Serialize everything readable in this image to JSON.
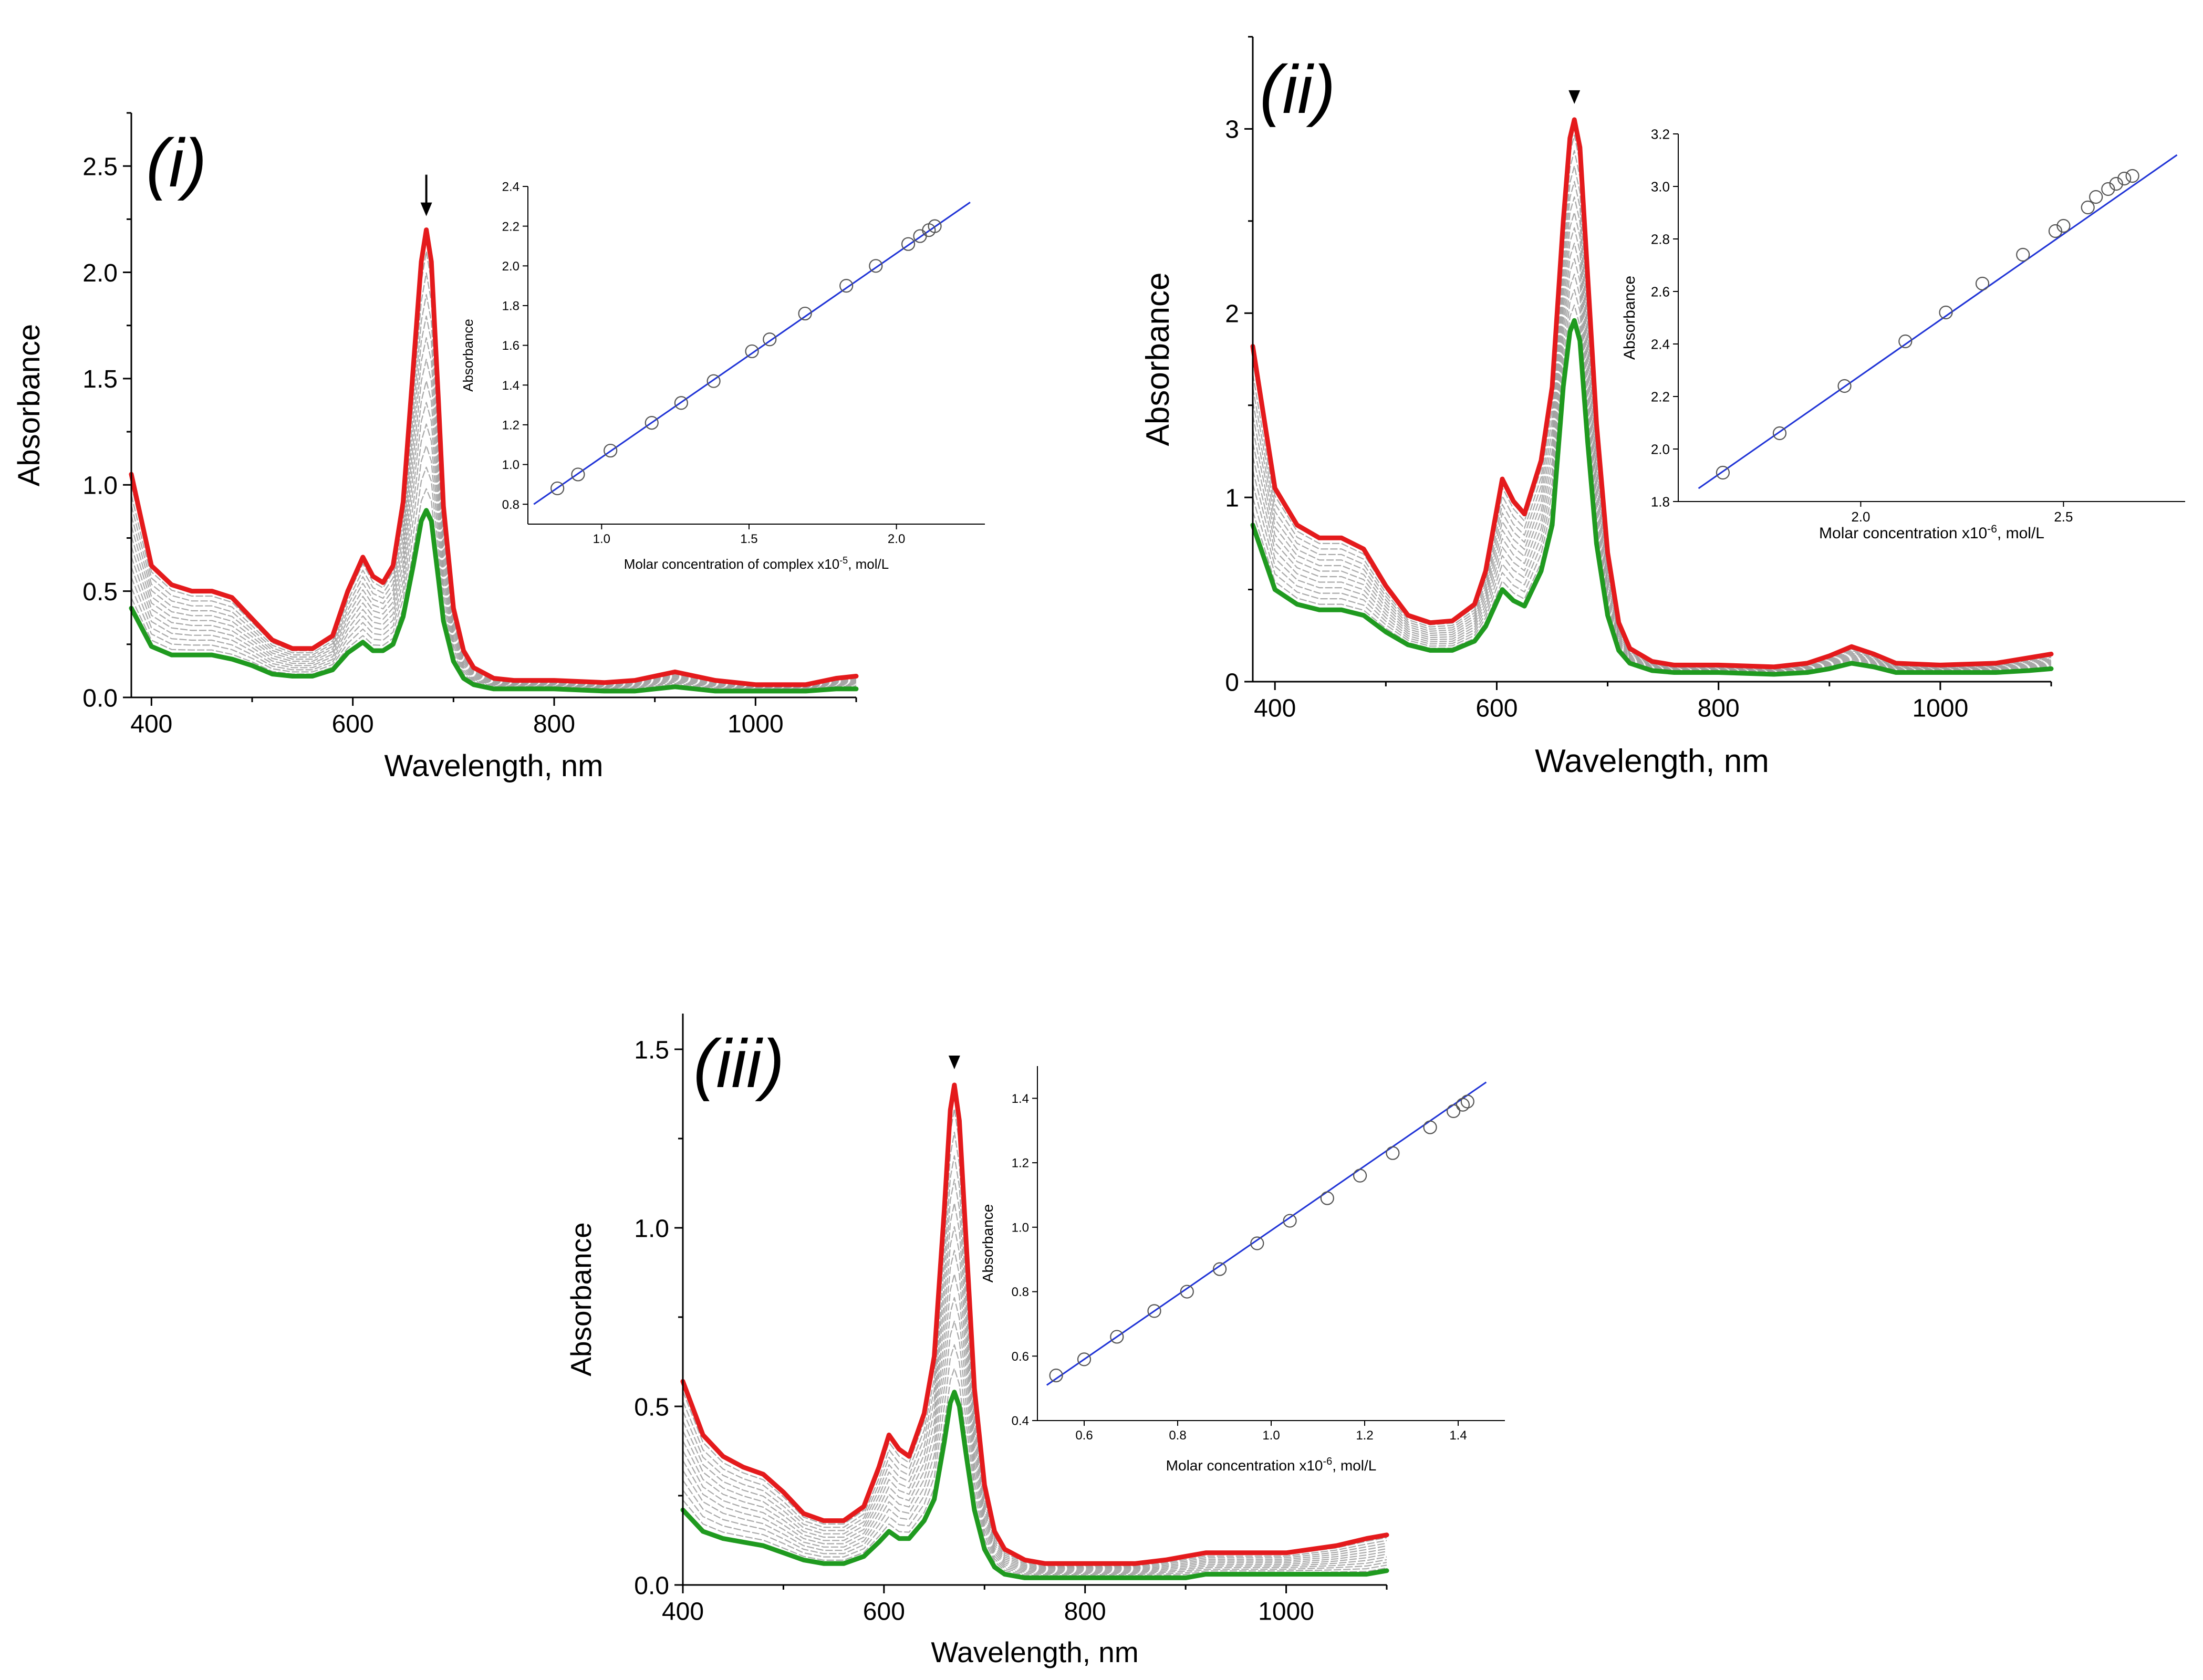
{
  "colors": {
    "final_spectrum": "#e41a1c",
    "initial_spectrum": "#1f9a1f",
    "intermediate_spectra": "#9a9a9a",
    "fit_line": "#1f33d6",
    "marker": "#555555",
    "axis": "#000000"
  },
  "chart_data": [
    {
      "type": "line",
      "panel_label": "(i)",
      "xlabel": "Wavelength, nm",
      "ylabel": "Absorbance",
      "xlim": [
        380,
        1100
      ],
      "ylim": [
        0.0,
        2.75
      ],
      "xticks": [
        400,
        600,
        800,
        1000
      ],
      "yticks": [
        0.0,
        0.5,
        1.0,
        1.5,
        2.0,
        2.5
      ],
      "ytick_labels": [
        "0.0",
        "0.5",
        "1.0",
        "1.5",
        "2.0",
        "2.5"
      ],
      "grid": false,
      "peak_arrow": {
        "x": 673,
        "style": "arrow"
      },
      "spectra_count": 14,
      "series": [
        {
          "role": "final",
          "x": [
            380,
            400,
            420,
            440,
            460,
            480,
            500,
            520,
            540,
            560,
            580,
            595,
            610,
            620,
            630,
            640,
            650,
            660,
            668,
            673,
            678,
            685,
            690,
            700,
            710,
            720,
            740,
            760,
            800,
            850,
            880,
            900,
            920,
            940,
            960,
            1000,
            1050,
            1080,
            1100
          ],
          "y": [
            1.05,
            0.62,
            0.53,
            0.5,
            0.5,
            0.47,
            0.37,
            0.27,
            0.23,
            0.23,
            0.29,
            0.5,
            0.66,
            0.57,
            0.54,
            0.62,
            0.92,
            1.55,
            2.05,
            2.2,
            2.05,
            1.4,
            0.9,
            0.42,
            0.22,
            0.14,
            0.09,
            0.08,
            0.08,
            0.07,
            0.08,
            0.1,
            0.12,
            0.1,
            0.08,
            0.06,
            0.06,
            0.09,
            0.1
          ]
        },
        {
          "role": "initial",
          "x": [
            380,
            400,
            420,
            440,
            460,
            480,
            500,
            520,
            540,
            560,
            580,
            595,
            610,
            620,
            630,
            640,
            650,
            660,
            668,
            673,
            678,
            685,
            690,
            700,
            710,
            720,
            740,
            760,
            800,
            850,
            880,
            900,
            920,
            940,
            960,
            1000,
            1050,
            1080,
            1100
          ],
          "y": [
            0.42,
            0.24,
            0.2,
            0.2,
            0.2,
            0.18,
            0.15,
            0.11,
            0.1,
            0.1,
            0.13,
            0.21,
            0.26,
            0.22,
            0.22,
            0.25,
            0.38,
            0.62,
            0.83,
            0.88,
            0.83,
            0.56,
            0.36,
            0.17,
            0.09,
            0.06,
            0.04,
            0.04,
            0.04,
            0.03,
            0.03,
            0.04,
            0.05,
            0.04,
            0.03,
            0.03,
            0.03,
            0.04,
            0.04
          ]
        }
      ],
      "inset": {
        "type": "scatter",
        "xlabel": "Molar concentration of complex x10",
        "xlabel_exponent": "-5",
        "xlabel_unit": ", mol/L",
        "ylabel": "Absorbance",
        "xlim": [
          0.75,
          2.3
        ],
        "ylim": [
          0.7,
          2.4
        ],
        "xticks": [
          1.0,
          1.5,
          2.0
        ],
        "xtick_labels": [
          "1.0",
          "1.5",
          "2.0"
        ],
        "yticks": [
          0.8,
          1.0,
          1.2,
          1.4,
          1.6,
          1.8,
          2.0,
          2.2,
          2.4
        ],
        "ytick_labels": [
          "0.8",
          "1.0",
          "1.2",
          "1.4",
          "1.6",
          "1.8",
          "2.0",
          "2.2",
          "2.4"
        ],
        "points": {
          "x": [
            0.85,
            0.92,
            1.03,
            1.17,
            1.27,
            1.38,
            1.51,
            1.57,
            1.69,
            1.83,
            1.93,
            2.04,
            2.08,
            2.11,
            2.13
          ],
          "y": [
            0.88,
            0.95,
            1.07,
            1.21,
            1.31,
            1.42,
            1.57,
            1.63,
            1.76,
            1.9,
            2.0,
            2.11,
            2.15,
            2.18,
            2.2
          ]
        },
        "fit": {
          "x": [
            0.77,
            2.25
          ],
          "y": [
            0.8,
            2.32
          ]
        }
      }
    },
    {
      "type": "line",
      "panel_label": "(ii)",
      "xlabel": "Wavelength, nm",
      "ylabel": "Absorbance",
      "xlim": [
        380,
        1100
      ],
      "ylim": [
        0.0,
        3.5
      ],
      "xticks": [
        400,
        600,
        800,
        1000
      ],
      "yticks": [
        0,
        1,
        2,
        3
      ],
      "ytick_labels": [
        "0",
        "1",
        "2",
        "3"
      ],
      "grid": false,
      "peak_arrow": {
        "x": 670,
        "style": "triangle"
      },
      "spectra_count": 14,
      "series": [
        {
          "role": "final",
          "x": [
            380,
            400,
            420,
            440,
            460,
            480,
            500,
            520,
            540,
            560,
            580,
            590,
            605,
            615,
            625,
            640,
            650,
            660,
            666,
            670,
            675,
            682,
            690,
            700,
            710,
            720,
            740,
            760,
            800,
            850,
            880,
            900,
            920,
            940,
            960,
            1000,
            1050,
            1080,
            1100
          ],
          "y": [
            1.82,
            1.05,
            0.85,
            0.78,
            0.78,
            0.72,
            0.52,
            0.36,
            0.32,
            0.33,
            0.42,
            0.6,
            1.1,
            0.98,
            0.91,
            1.2,
            1.6,
            2.5,
            2.95,
            3.05,
            2.9,
            2.2,
            1.4,
            0.7,
            0.32,
            0.18,
            0.11,
            0.09,
            0.09,
            0.08,
            0.1,
            0.14,
            0.19,
            0.15,
            0.1,
            0.09,
            0.1,
            0.13,
            0.15
          ]
        },
        {
          "role": "initial",
          "x": [
            380,
            400,
            420,
            440,
            460,
            480,
            500,
            520,
            540,
            560,
            580,
            590,
            605,
            615,
            625,
            640,
            650,
            660,
            666,
            670,
            675,
            682,
            690,
            700,
            710,
            720,
            740,
            760,
            800,
            850,
            880,
            900,
            920,
            940,
            960,
            1000,
            1050,
            1080,
            1100
          ],
          "y": [
            0.85,
            0.5,
            0.42,
            0.39,
            0.39,
            0.36,
            0.27,
            0.2,
            0.17,
            0.17,
            0.22,
            0.3,
            0.5,
            0.44,
            0.41,
            0.6,
            0.85,
            1.6,
            1.9,
            1.96,
            1.85,
            1.3,
            0.75,
            0.36,
            0.17,
            0.1,
            0.06,
            0.05,
            0.05,
            0.04,
            0.05,
            0.07,
            0.1,
            0.08,
            0.05,
            0.05,
            0.05,
            0.06,
            0.07
          ]
        }
      ],
      "inset": {
        "type": "scatter",
        "xlabel": "Molar concentration x10",
        "xlabel_exponent": "-6",
        "xlabel_unit": ", mol/L",
        "ylabel": "Absorbance",
        "xlim": [
          1.55,
          2.8
        ],
        "ylim": [
          1.8,
          3.2
        ],
        "xticks": [
          2.0,
          2.5
        ],
        "xtick_labels": [
          "2.0",
          "2.5"
        ],
        "yticks": [
          1.8,
          2.0,
          2.2,
          2.4,
          2.6,
          2.8,
          3.0,
          3.2
        ],
        "ytick_labels": [
          "1.8",
          "2.0",
          "2.2",
          "2.4",
          "2.6",
          "2.8",
          "3.0",
          "3.2"
        ],
        "points": {
          "x": [
            1.66,
            1.8,
            1.96,
            2.11,
            2.21,
            2.3,
            2.4,
            2.48,
            2.5,
            2.56,
            2.58,
            2.61,
            2.63,
            2.65,
            2.67
          ],
          "y": [
            1.91,
            2.06,
            2.24,
            2.41,
            2.52,
            2.63,
            2.74,
            2.83,
            2.85,
            2.92,
            2.96,
            2.99,
            3.01,
            3.03,
            3.04
          ]
        },
        "fit": {
          "x": [
            1.6,
            2.78
          ],
          "y": [
            1.85,
            3.12
          ]
        }
      }
    },
    {
      "type": "line",
      "panel_label": "(iii)",
      "xlabel": "Wavelength, nm",
      "ylabel": "Absorbance",
      "xlim": [
        400,
        1100
      ],
      "ylim": [
        0.0,
        1.6
      ],
      "xticks": [
        400,
        600,
        800,
        1000
      ],
      "yticks": [
        0.0,
        0.5,
        1.0,
        1.5
      ],
      "ytick_labels": [
        "0.0",
        "0.5",
        "1.0",
        "1.5"
      ],
      "grid": false,
      "peak_arrow": {
        "x": 670,
        "style": "triangle"
      },
      "spectra_count": 14,
      "series": [
        {
          "role": "final",
          "x": [
            400,
            420,
            440,
            460,
            480,
            500,
            520,
            540,
            560,
            580,
            595,
            605,
            615,
            625,
            640,
            650,
            660,
            666,
            670,
            675,
            682,
            690,
            700,
            710,
            720,
            740,
            760,
            800,
            850,
            880,
            900,
            920,
            940,
            960,
            1000,
            1050,
            1080,
            1100
          ],
          "y": [
            0.57,
            0.42,
            0.36,
            0.33,
            0.31,
            0.26,
            0.2,
            0.18,
            0.18,
            0.22,
            0.33,
            0.42,
            0.38,
            0.36,
            0.48,
            0.64,
            1.05,
            1.33,
            1.4,
            1.3,
            0.95,
            0.55,
            0.28,
            0.15,
            0.1,
            0.07,
            0.06,
            0.06,
            0.06,
            0.07,
            0.08,
            0.09,
            0.09,
            0.09,
            0.09,
            0.11,
            0.13,
            0.14
          ]
        },
        {
          "role": "initial",
          "x": [
            400,
            420,
            440,
            460,
            480,
            500,
            520,
            540,
            560,
            580,
            595,
            605,
            615,
            625,
            640,
            650,
            660,
            666,
            670,
            675,
            682,
            690,
            700,
            710,
            720,
            740,
            760,
            800,
            850,
            880,
            900,
            920,
            940,
            960,
            1000,
            1050,
            1080,
            1100
          ],
          "y": [
            0.21,
            0.15,
            0.13,
            0.12,
            0.11,
            0.09,
            0.07,
            0.06,
            0.06,
            0.08,
            0.12,
            0.15,
            0.13,
            0.13,
            0.18,
            0.24,
            0.4,
            0.51,
            0.54,
            0.5,
            0.36,
            0.21,
            0.1,
            0.05,
            0.03,
            0.02,
            0.02,
            0.02,
            0.02,
            0.02,
            0.02,
            0.03,
            0.03,
            0.03,
            0.03,
            0.03,
            0.03,
            0.04
          ]
        }
      ],
      "inset": {
        "type": "scatter",
        "xlabel": "Molar concentration x10",
        "xlabel_exponent": "-6",
        "xlabel_unit": ", mol/L",
        "ylabel": "Absorbance",
        "xlim": [
          0.5,
          1.5
        ],
        "ylim": [
          0.4,
          1.5
        ],
        "xticks": [
          0.6,
          0.8,
          1.0,
          1.2,
          1.4
        ],
        "xtick_labels": [
          "0.6",
          "0.8",
          "1.0",
          "1.2",
          "1.4"
        ],
        "yticks": [
          0.4,
          0.6,
          0.8,
          1.0,
          1.2,
          1.4
        ],
        "ytick_labels": [
          "0.4",
          "0.6",
          "0.8",
          "1.0",
          "1.2",
          "1.4"
        ],
        "points": {
          "x": [
            0.54,
            0.6,
            0.67,
            0.75,
            0.82,
            0.89,
            0.97,
            1.04,
            1.12,
            1.19,
            1.26,
            1.34,
            1.39,
            1.41,
            1.42
          ],
          "y": [
            0.54,
            0.59,
            0.66,
            0.74,
            0.8,
            0.87,
            0.95,
            1.02,
            1.09,
            1.16,
            1.23,
            1.31,
            1.36,
            1.38,
            1.39
          ]
        },
        "fit": {
          "x": [
            0.52,
            1.46
          ],
          "y": [
            0.51,
            1.45
          ]
        }
      }
    }
  ]
}
